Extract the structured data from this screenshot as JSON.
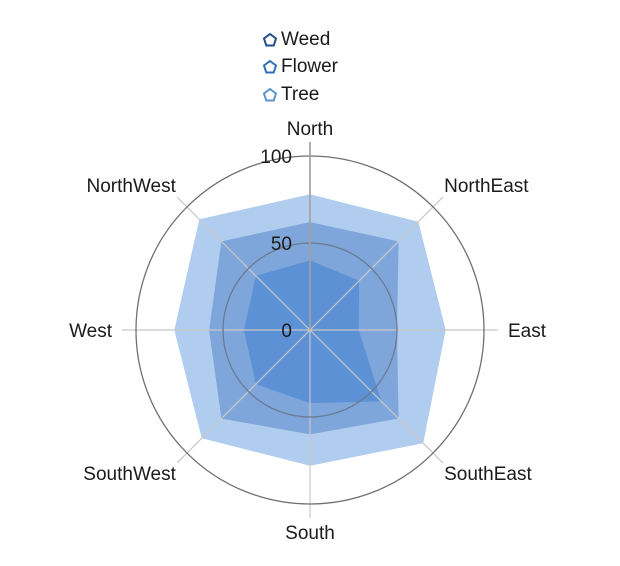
{
  "legend": {
    "items": [
      {
        "label": "Weed",
        "color": "#1f4e8c"
      },
      {
        "label": "Flower",
        "color": "#2f6eb8"
      },
      {
        "label": "Tree",
        "color": "#5b93d3"
      }
    ]
  },
  "chart_data": {
    "type": "polar-area",
    "title": "",
    "rlim": [
      0,
      100
    ],
    "r_ticks": [
      "0",
      "50",
      "100"
    ],
    "r_tick_values": [
      0,
      50,
      100
    ],
    "categories": [
      "North",
      "NorthEast",
      "East",
      "SouthEast",
      "South",
      "SouthWest",
      "West",
      "NorthWest"
    ],
    "series": [
      {
        "name": "Tree",
        "color": "#a7c8ee",
        "values": [
          78,
          88,
          78,
          92,
          78,
          88,
          78,
          90
        ]
      },
      {
        "name": "Flower",
        "color": "#7aa2d8",
        "values": [
          62,
          72,
          50,
          72,
          60,
          72,
          58,
          72
        ]
      },
      {
        "name": "Weed",
        "color": "#5a8fd4",
        "values": [
          40,
          40,
          28,
          58,
          42,
          44,
          38,
          44
        ]
      }
    ],
    "grid": true,
    "legend_position": "top"
  }
}
